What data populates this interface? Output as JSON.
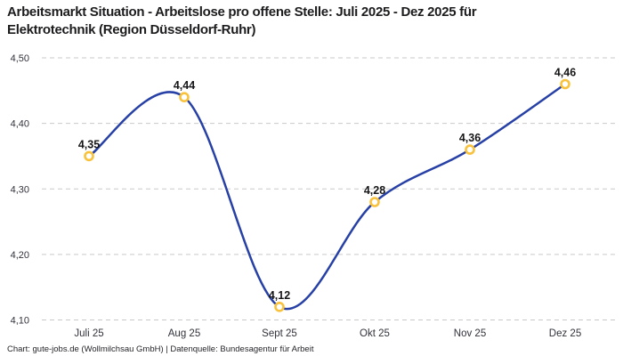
{
  "title": "Arbeitsmarkt Situation - Arbeitslose pro offene Stelle: Juli 2025 - Dez 2025 für Elektrotechnik (Region Düsseldorf-Ruhr)",
  "footer": "Chart: gute-jobs.de (Wollmilchsau GmbH) | Datenquelle: Bundesagentur für Arbeit",
  "colors": {
    "line": "#2740a6",
    "marker_ring": "#f8c23d",
    "marker_fill": "#ffffff",
    "grid": "#c9c9c9",
    "title_text": "#1c1c1e",
    "axis_text": "#32333c",
    "background": "#ffffff"
  },
  "chart_data": {
    "type": "line",
    "title": "Arbeitsmarkt Situation - Arbeitslose pro offene Stelle: Juli 2025 - Dez 2025 für Elektrotechnik (Region Düsseldorf-Ruhr)",
    "xlabel": "",
    "ylabel": "",
    "categories": [
      "Juli 25",
      "Aug 25",
      "Sept 25",
      "Okt 25",
      "Nov 25",
      "Dez 25"
    ],
    "values": [
      4.35,
      4.44,
      4.12,
      4.28,
      4.36,
      4.46
    ],
    "value_labels": [
      "4,35",
      "4,44",
      "4,12",
      "4,28",
      "4,36",
      "4,46"
    ],
    "y_ticks": [
      {
        "value": 4.5,
        "label": "4,50"
      },
      {
        "value": 4.4,
        "label": "4,40"
      },
      {
        "value": 4.3,
        "label": "4,30"
      },
      {
        "value": 4.2,
        "label": "4,20"
      },
      {
        "value": 4.1,
        "label": "4,10"
      }
    ],
    "ylim": [
      4.1,
      4.5
    ],
    "grid": "horizontal-dashed",
    "smooth": true,
    "legend": "none",
    "marker_style": "open-circle"
  }
}
